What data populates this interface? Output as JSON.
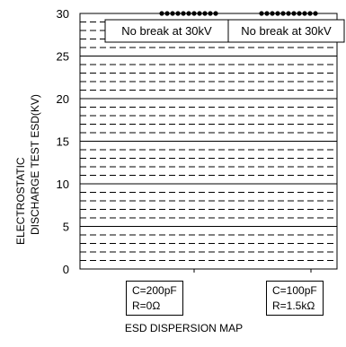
{
  "chart_data": {
    "type": "scatter",
    "title": "",
    "xlabel": "ESD DISPERSION MAP",
    "ylabel_lines": [
      "ELECTROSTATIC",
      "DISCHARGE TEST ESD(KV)"
    ],
    "ylim": [
      0,
      30
    ],
    "yticks": [
      "0",
      "5",
      "10",
      "15",
      "20",
      "25",
      "30"
    ],
    "grid": {
      "major_step": 5,
      "minor_step": 1
    },
    "categories": [
      {
        "lines": [
          "C=200pF",
          "R=0Ω"
        ]
      },
      {
        "lines": [
          "C=100pF",
          "R=1.5kΩ"
        ]
      }
    ],
    "series": [
      {
        "values": [
          30,
          30
        ],
        "points_per_category": 11
      }
    ],
    "annotations": [
      "No break at 30kV",
      "No break at 30kV"
    ]
  }
}
